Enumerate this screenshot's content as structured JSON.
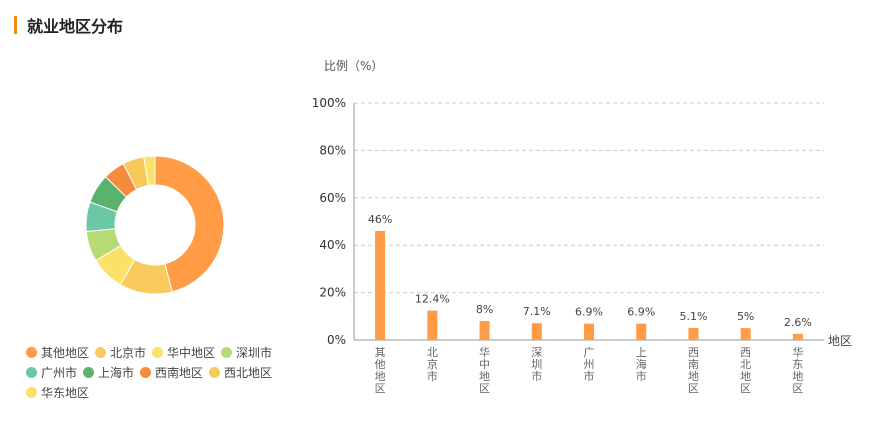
{
  "section": {
    "title": "就业地区分布"
  },
  "colors": {
    "accent": "#f08c1e",
    "bar": "#ff9c45",
    "grid": "#cccccc"
  },
  "chart_data": [
    {
      "type": "pie",
      "variant": "donut",
      "labels": [
        "其他地区",
        "北京市",
        "华中地区",
        "深圳市",
        "广州市",
        "上海市",
        "西南地区",
        "西北地区",
        "华东地区"
      ],
      "values": [
        46,
        12.4,
        8,
        7.1,
        6.9,
        6.9,
        5.1,
        5,
        2.6
      ],
      "colors": [
        "#ff9c45",
        "#f9cb5c",
        "#f9e16a",
        "#b6da74",
        "#6cc7a6",
        "#5bb26c",
        "#f58b3d",
        "#f7c95a",
        "#fae16a"
      ],
      "legend_position": "bottom"
    },
    {
      "type": "bar",
      "categories": [
        "其他地区",
        "北京市",
        "华中地区",
        "深圳市",
        "广州市",
        "上海市",
        "西南地区",
        "西北地区",
        "华东地区"
      ],
      "values": [
        46,
        12.4,
        8,
        7.1,
        6.9,
        6.9,
        5.1,
        5,
        2.6
      ],
      "value_labels": [
        "46%",
        "12.4%",
        "8%",
        "7.1%",
        "6.9%",
        "6.9%",
        "5.1%",
        "5%",
        "2.6%"
      ],
      "ylabel": "比例（%）",
      "xlabel": "地区",
      "ylim": [
        0,
        100
      ],
      "yticks": [
        "0%",
        "20%",
        "40%",
        "60%",
        "80%",
        "100%"
      ],
      "grid": true
    }
  ]
}
